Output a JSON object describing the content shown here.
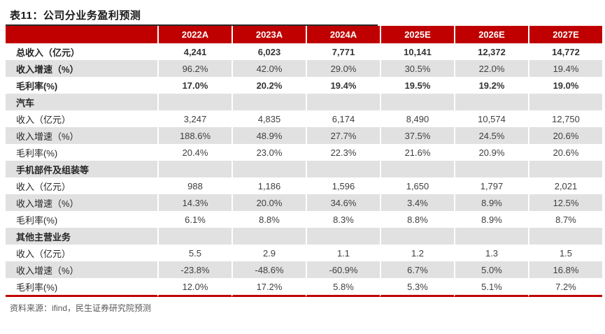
{
  "title": "表11：公司分业务盈利预测",
  "source": "资料来源：ifind，民生证券研究院预测",
  "colors": {
    "header_red": "#c00000",
    "bottom_rule_red": "#c00000",
    "shaded_row_gray": "#e1e1e1",
    "top_rule_black": "#2b2b2b",
    "header_text": "#ffffff",
    "body_text": "#404040",
    "source_text": "#595959"
  },
  "table": {
    "columns": [
      "",
      "2022A",
      "2023A",
      "2024A",
      "2025E",
      "2026E",
      "2027E"
    ],
    "rows": [
      {
        "label": "总收入（亿元）",
        "values": [
          "4,241",
          "6,023",
          "7,771",
          "10,141",
          "12,372",
          "14,772"
        ],
        "shaded": false,
        "bold_label": true,
        "bold_values": true,
        "section": false
      },
      {
        "label": "收入增速（%）",
        "values": [
          "96.2%",
          "42.0%",
          "29.0%",
          "30.5%",
          "22.0%",
          "19.4%"
        ],
        "shaded": true,
        "bold_label": true,
        "bold_values": false,
        "section": false
      },
      {
        "label": "毛利率(%)",
        "values": [
          "17.0%",
          "20.2%",
          "19.4%",
          "19.5%",
          "19.2%",
          "19.0%"
        ],
        "shaded": false,
        "bold_label": true,
        "bold_values": true,
        "section": false
      },
      {
        "label": "汽车",
        "values": [
          "",
          "",
          "",
          "",
          "",
          ""
        ],
        "shaded": true,
        "bold_label": true,
        "bold_values": false,
        "section": true
      },
      {
        "label": "收入（亿元）",
        "values": [
          "3,247",
          "4,835",
          "6,174",
          "8,490",
          "10,574",
          "12,750"
        ],
        "shaded": false,
        "bold_label": false,
        "bold_values": false,
        "section": false
      },
      {
        "label": "收入增速（%）",
        "values": [
          "188.6%",
          "48.9%",
          "27.7%",
          "37.5%",
          "24.5%",
          "20.6%"
        ],
        "shaded": true,
        "bold_label": false,
        "bold_values": false,
        "section": false
      },
      {
        "label": "毛利率(%)",
        "values": [
          "20.4%",
          "23.0%",
          "22.3%",
          "21.6%",
          "20.9%",
          "20.6%"
        ],
        "shaded": false,
        "bold_label": false,
        "bold_values": false,
        "section": false
      },
      {
        "label": "手机部件及组装等",
        "values": [
          "",
          "",
          "",
          "",
          "",
          ""
        ],
        "shaded": true,
        "bold_label": true,
        "bold_values": false,
        "section": true
      },
      {
        "label": "收入（亿元）",
        "values": [
          "988",
          "1,186",
          "1,596",
          "1,650",
          "1,797",
          "2,021"
        ],
        "shaded": false,
        "bold_label": false,
        "bold_values": false,
        "section": false
      },
      {
        "label": "收入增速（%）",
        "values": [
          "14.3%",
          "20.0%",
          "34.6%",
          "3.4%",
          "8.9%",
          "12.5%"
        ],
        "shaded": true,
        "bold_label": false,
        "bold_values": false,
        "section": false
      },
      {
        "label": "毛利率(%)",
        "values": [
          "6.1%",
          "8.8%",
          "8.3%",
          "8.8%",
          "8.9%",
          "8.7%"
        ],
        "shaded": false,
        "bold_label": false,
        "bold_values": false,
        "section": false
      },
      {
        "label": "其他主营业务",
        "values": [
          "",
          "",
          "",
          "",
          "",
          ""
        ],
        "shaded": true,
        "bold_label": true,
        "bold_values": false,
        "section": true
      },
      {
        "label": "收入（亿元）",
        "values": [
          "5.5",
          "2.9",
          "1.1",
          "1.2",
          "1.3",
          "1.5"
        ],
        "shaded": false,
        "bold_label": false,
        "bold_values": false,
        "section": false
      },
      {
        "label": "收入增速（%）",
        "values": [
          "-23.8%",
          "-48.6%",
          "-60.9%",
          "6.7%",
          "5.0%",
          "16.8%"
        ],
        "shaded": true,
        "bold_label": false,
        "bold_values": false,
        "section": false
      },
      {
        "label": "毛利率(%)",
        "values": [
          "12.0%",
          "17.2%",
          "5.8%",
          "5.3%",
          "5.1%",
          "7.2%"
        ],
        "shaded": false,
        "bold_label": false,
        "bold_values": false,
        "section": false
      }
    ]
  }
}
